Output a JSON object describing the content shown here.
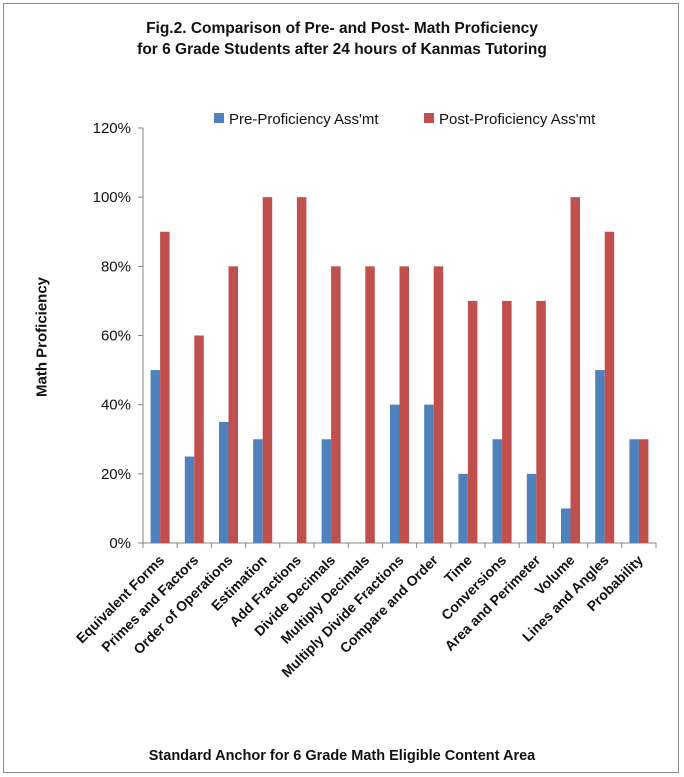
{
  "chart_data": {
    "type": "bar",
    "title": [
      "Fig.2. Comparison of Pre- and  Post- Math Proficiency",
      "for  6 Grade Students after  24 hours of Kanmas Tutoring"
    ],
    "xlabel": "Standard Anchor for 6 Grade Math Eligible Content Area",
    "ylabel": "Math Proficiency",
    "ylim": [
      0,
      1.2
    ],
    "yticks": [
      "0%",
      "20%",
      "40%",
      "60%",
      "80%",
      "100%",
      "120%"
    ],
    "grid": false,
    "legend_position": "top-right",
    "categories": [
      "Equivalent Forms",
      "Primes and Factors",
      "Order of Operations",
      "Estimation",
      "Add Fractions",
      "Divide Decimals",
      "Multiply Decimals",
      "Multiply Divide Fractions",
      "Compare and Order",
      "Time",
      "Conversions",
      "Area and Perimeter",
      "Volume",
      "Lines and Angles",
      "Probability"
    ],
    "series": [
      {
        "name": "Pre-Proficiency Ass'mt",
        "color": "#4f81bd",
        "values": [
          0.5,
          0.25,
          0.35,
          0.3,
          0,
          0.3,
          0,
          0.4,
          0.4,
          0.2,
          0.3,
          0.2,
          0.1,
          0.5,
          0.3
        ]
      },
      {
        "name": "Post-Proficiency Ass'mt",
        "color": "#c0504d",
        "values": [
          0.9,
          0.6,
          0.8,
          1.0,
          1.0,
          0.8,
          0.8,
          0.8,
          0.8,
          0.7,
          0.7,
          0.7,
          1.0,
          0.9,
          0.3
        ]
      }
    ]
  }
}
